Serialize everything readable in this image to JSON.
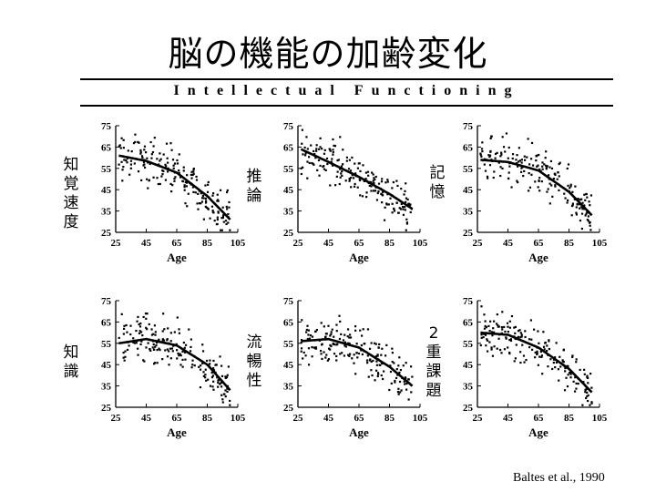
{
  "title": "脳の機能の加齢変化",
  "subtitle": "Intellectual Functioning",
  "citation": "Baltes et al., 1990",
  "chart_data": [
    {
      "type": "scatter",
      "label": "知覚速度",
      "xlabel": "Age",
      "xticks": [
        25,
        45,
        65,
        85,
        105
      ],
      "yticks": [
        25,
        35,
        45,
        55,
        65,
        75
      ],
      "xlim": [
        25,
        105
      ],
      "ylim": [
        25,
        75
      ],
      "grid": false,
      "x_range": [
        27,
        100
      ],
      "trend": [
        [
          27,
          61
        ],
        [
          45,
          58.5
        ],
        [
          65,
          53
        ],
        [
          85,
          42
        ],
        [
          100,
          31
        ]
      ]
    },
    {
      "type": "scatter",
      "label": "推論",
      "xlabel": "Age",
      "xticks": [
        25,
        45,
        65,
        85,
        105
      ],
      "yticks": [
        25,
        35,
        45,
        55,
        65,
        75
      ],
      "xlim": [
        25,
        105
      ],
      "ylim": [
        25,
        75
      ],
      "grid": false,
      "x_range": [
        27,
        100
      ],
      "trend": [
        [
          27,
          64
        ],
        [
          45,
          58
        ],
        [
          65,
          51
        ],
        [
          85,
          43
        ],
        [
          100,
          36
        ]
      ]
    },
    {
      "type": "scatter",
      "label": "記憶",
      "xlabel": "Age",
      "xticks": [
        25,
        45,
        65,
        85,
        105
      ],
      "yticks": [
        25,
        35,
        45,
        55,
        65,
        75
      ],
      "xlim": [
        25,
        105
      ],
      "ylim": [
        25,
        75
      ],
      "grid": false,
      "x_range": [
        27,
        100
      ],
      "trend": [
        [
          27,
          59
        ],
        [
          45,
          58
        ],
        [
          65,
          54
        ],
        [
          85,
          44
        ],
        [
          100,
          33
        ]
      ]
    },
    {
      "type": "scatter",
      "label": "知識",
      "xlabel": "Age",
      "xticks": [
        25,
        45,
        65,
        85,
        105
      ],
      "yticks": [
        25,
        35,
        45,
        55,
        65,
        75
      ],
      "xlim": [
        25,
        105
      ],
      "ylim": [
        25,
        75
      ],
      "grid": false,
      "x_range": [
        27,
        100
      ],
      "trend": [
        [
          27,
          55
        ],
        [
          45,
          57
        ],
        [
          65,
          54
        ],
        [
          85,
          45
        ],
        [
          100,
          33
        ]
      ]
    },
    {
      "type": "scatter",
      "label": "流暢性",
      "xlabel": "Age",
      "xticks": [
        25,
        45,
        65,
        85,
        105
      ],
      "yticks": [
        25,
        35,
        45,
        55,
        65,
        75
      ],
      "xlim": [
        25,
        105
      ],
      "ylim": [
        25,
        75
      ],
      "grid": false,
      "x_range": [
        27,
        100
      ],
      "trend": [
        [
          27,
          56
        ],
        [
          45,
          57
        ],
        [
          65,
          53
        ],
        [
          85,
          44
        ],
        [
          100,
          35
        ]
      ]
    },
    {
      "type": "scatter",
      "label": "2重課題",
      "xlabel": "Age",
      "xticks": [
        25,
        45,
        65,
        85,
        105
      ],
      "yticks": [
        25,
        35,
        45,
        55,
        65,
        75
      ],
      "xlim": [
        25,
        105
      ],
      "ylim": [
        25,
        75
      ],
      "grid": false,
      "x_range": [
        27,
        100
      ],
      "trend": [
        [
          27,
          60
        ],
        [
          45,
          59
        ],
        [
          65,
          53
        ],
        [
          85,
          43
        ],
        [
          100,
          32
        ]
      ]
    }
  ]
}
